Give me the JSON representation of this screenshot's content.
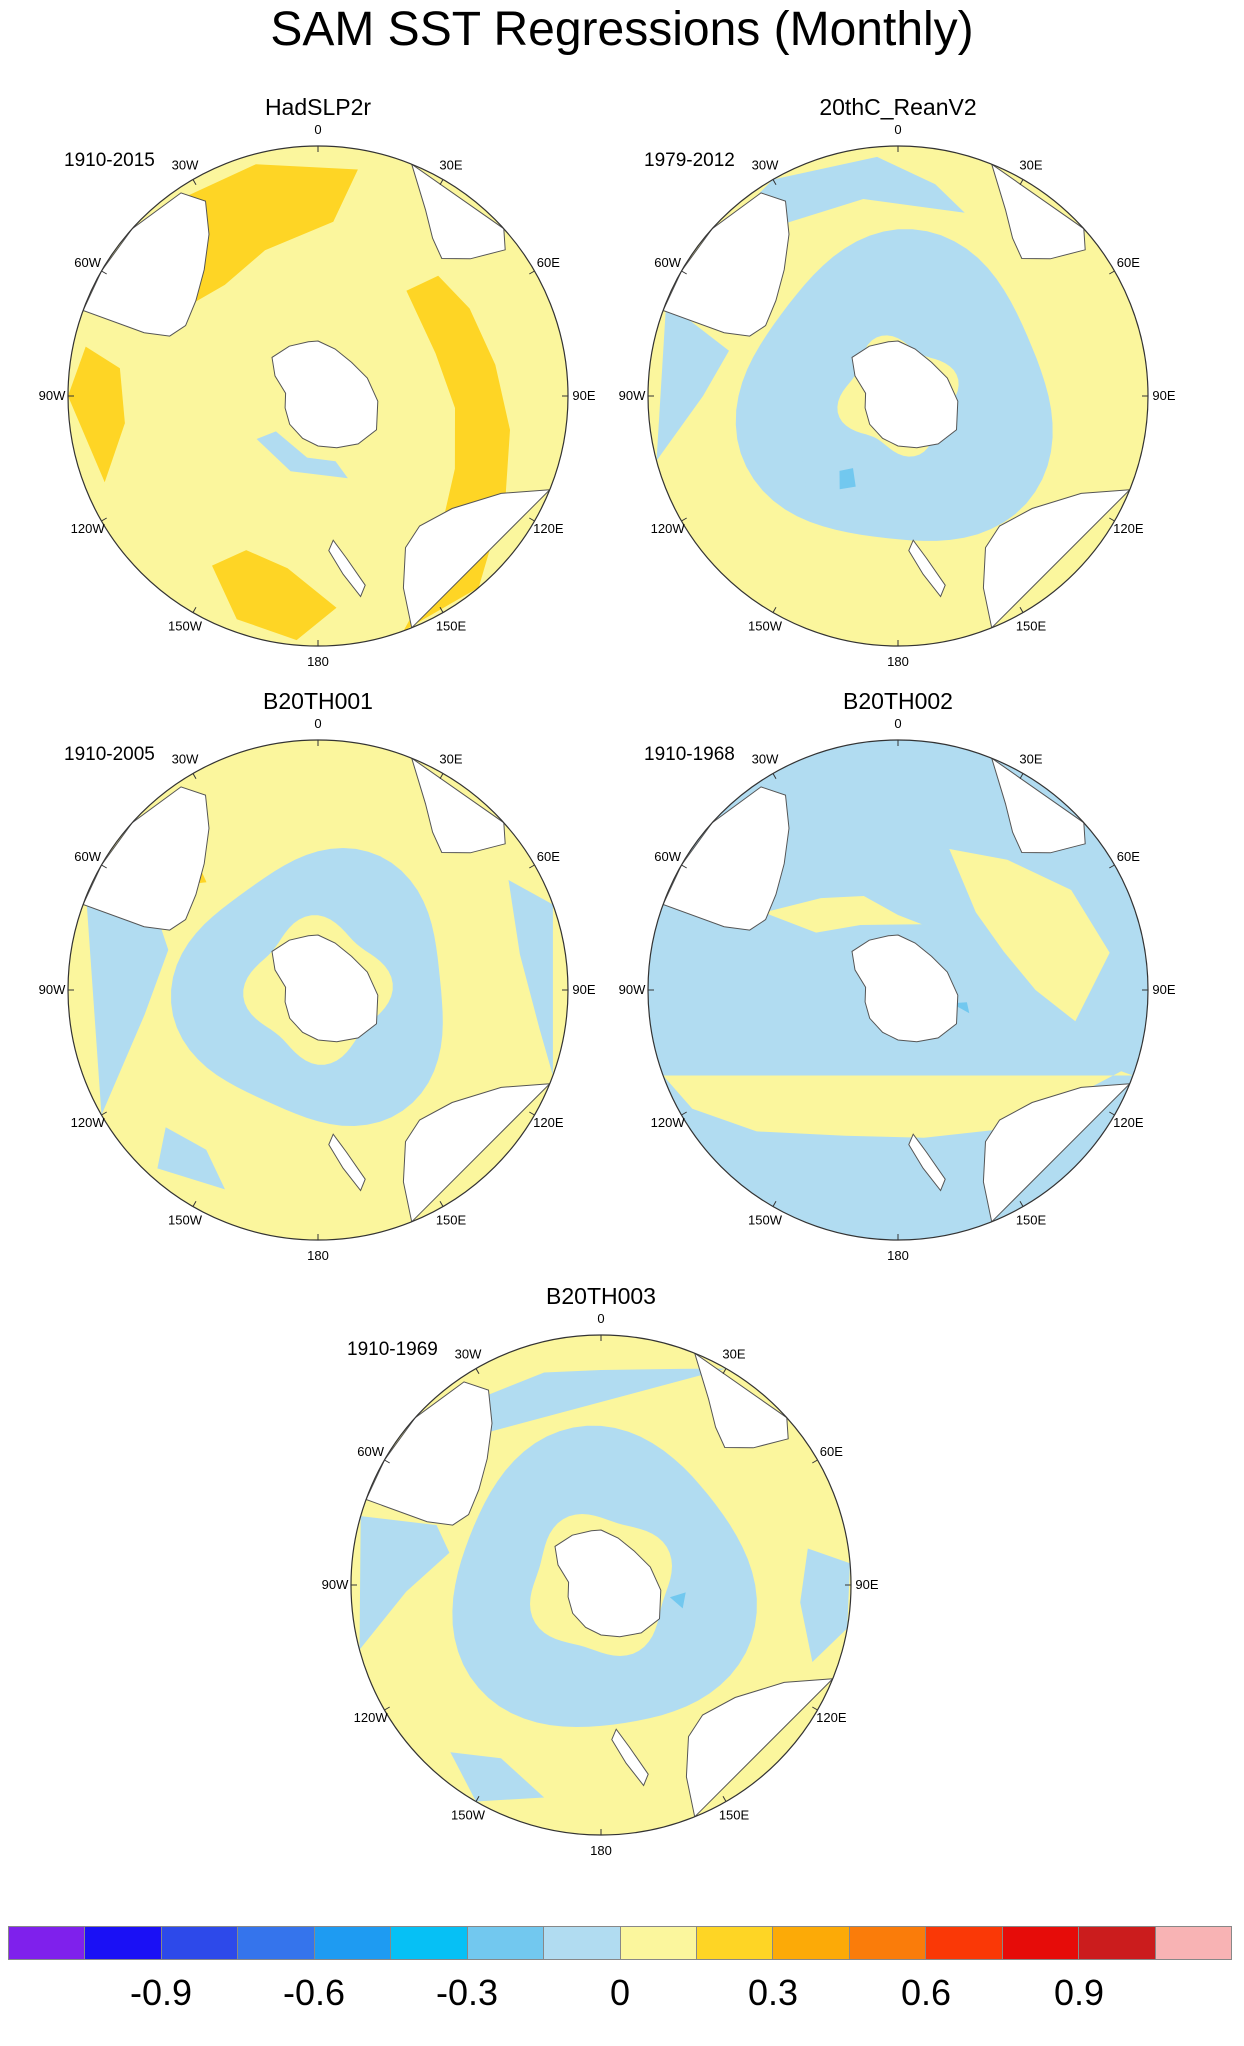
{
  "title": "SAM SST Regressions (Monthly)",
  "longitude_labels": [
    "0",
    "30E",
    "60E",
    "90E",
    "120E",
    "150E",
    "180",
    "150W",
    "120W",
    "90W",
    "60W",
    "30W"
  ],
  "panels": [
    {
      "title": "HadSLP2r",
      "period": "1910-2015",
      "pattern": "had"
    },
    {
      "title": "20thC_ReanV2",
      "period": "1979-2012",
      "pattern": "rean"
    },
    {
      "title": "B20TH001",
      "period": "1910-2005",
      "pattern": "b1"
    },
    {
      "title": "B20TH002",
      "period": "1910-1968",
      "pattern": "b2"
    },
    {
      "title": "B20TH003",
      "period": "1910-1969",
      "pattern": "b3"
    }
  ],
  "colorbar": {
    "colors": [
      "#7f20ec",
      "#1a10f5",
      "#2d49ea",
      "#3574ec",
      "#1e9bf2",
      "#06c0f5",
      "#72c8ef",
      "#b1dcf1",
      "#fbf69d",
      "#fed525",
      "#fcaa07",
      "#fa7c0a",
      "#fa3806",
      "#e60c09",
      "#cb1c1d",
      "#f8b3b4"
    ],
    "labels": [
      "-0.9",
      "-0.6",
      "-0.3",
      "0",
      "0.3",
      "0.6",
      "0.9"
    ]
  },
  "palette": {
    "ocean_pos": "#fbf69d",
    "ocean_neg": "#b1dcf1",
    "ocean_pos2": "#fed525",
    "ocean_neg2": "#72c8ef",
    "ocean_pos3": "#fa7c0a",
    "land": "#ffffff"
  }
}
